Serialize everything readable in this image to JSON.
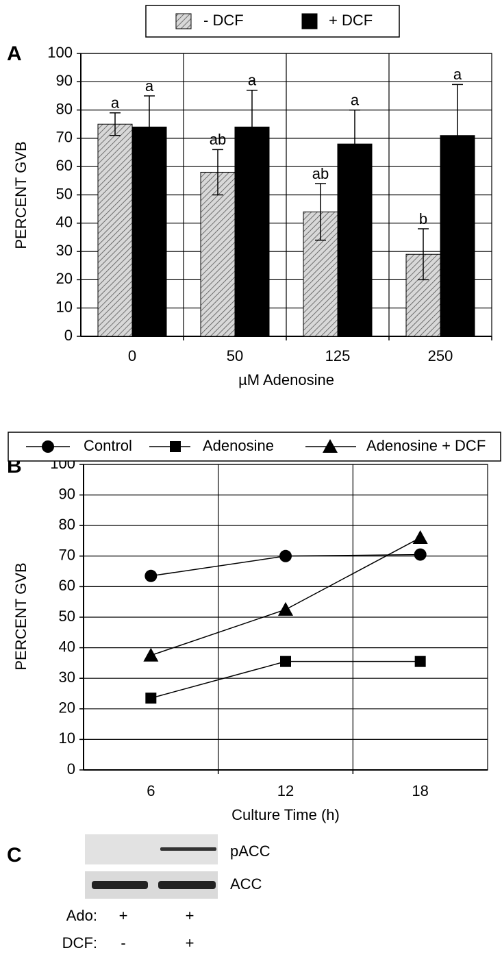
{
  "chart_data": [
    {
      "type": "bar",
      "panel_label": "A",
      "y_label": "PERCENT GVB",
      "x_label": "µM Adenosine",
      "categories": [
        "0",
        "50",
        "125",
        "250"
      ],
      "series": [
        {
          "name": "- DCF",
          "color": "#c8c8c8",
          "hatch": true,
          "values": [
            75,
            58,
            44,
            29
          ],
          "errors": [
            4,
            8,
            10,
            9
          ],
          "annotations": [
            "a",
            "ab",
            "ab",
            "b"
          ]
        },
        {
          "name": "+ DCF",
          "color": "#000000",
          "hatch": false,
          "values": [
            74,
            74,
            68,
            71
          ],
          "errors": [
            11,
            13,
            12,
            18
          ],
          "annotations": [
            "a",
            "a",
            "a",
            "a"
          ]
        }
      ],
      "ylim": [
        0,
        100
      ],
      "yticks": [
        0,
        10,
        20,
        30,
        40,
        50,
        60,
        70,
        80,
        90,
        100
      ],
      "grid": true
    },
    {
      "type": "line",
      "panel_label": "B",
      "y_label": "PERCENT GVB",
      "x_label": "Culture Time (h)",
      "x": [
        6,
        12,
        18
      ],
      "series": [
        {
          "name": "Control",
          "color": "#000000",
          "marker": "circle",
          "values": [
            63.5,
            70,
            70.5
          ]
        },
        {
          "name": "Adenosine",
          "color": "#000000",
          "marker": "square",
          "values": [
            23.5,
            35.5,
            35.5
          ]
        },
        {
          "name": "Adenosine + DCF",
          "color": "#000000",
          "marker": "triangle",
          "values": [
            37.5,
            52.5,
            76
          ]
        }
      ],
      "xlim": [
        3,
        21
      ],
      "xticks": [
        6,
        12,
        18
      ],
      "xgrid": [
        9,
        15
      ],
      "ylim": [
        0,
        100
      ],
      "yticks": [
        0,
        10,
        20,
        30,
        40,
        50,
        60,
        70,
        80,
        90,
        100
      ],
      "grid": true
    }
  ],
  "panel_c": {
    "panel_label": "C",
    "bands": [
      "pACC",
      "ACC"
    ],
    "rows": [
      {
        "label": "Ado:",
        "lanes": [
          "+",
          "+"
        ]
      },
      {
        "label": "DCF:",
        "lanes": [
          "-",
          "+"
        ]
      }
    ]
  }
}
